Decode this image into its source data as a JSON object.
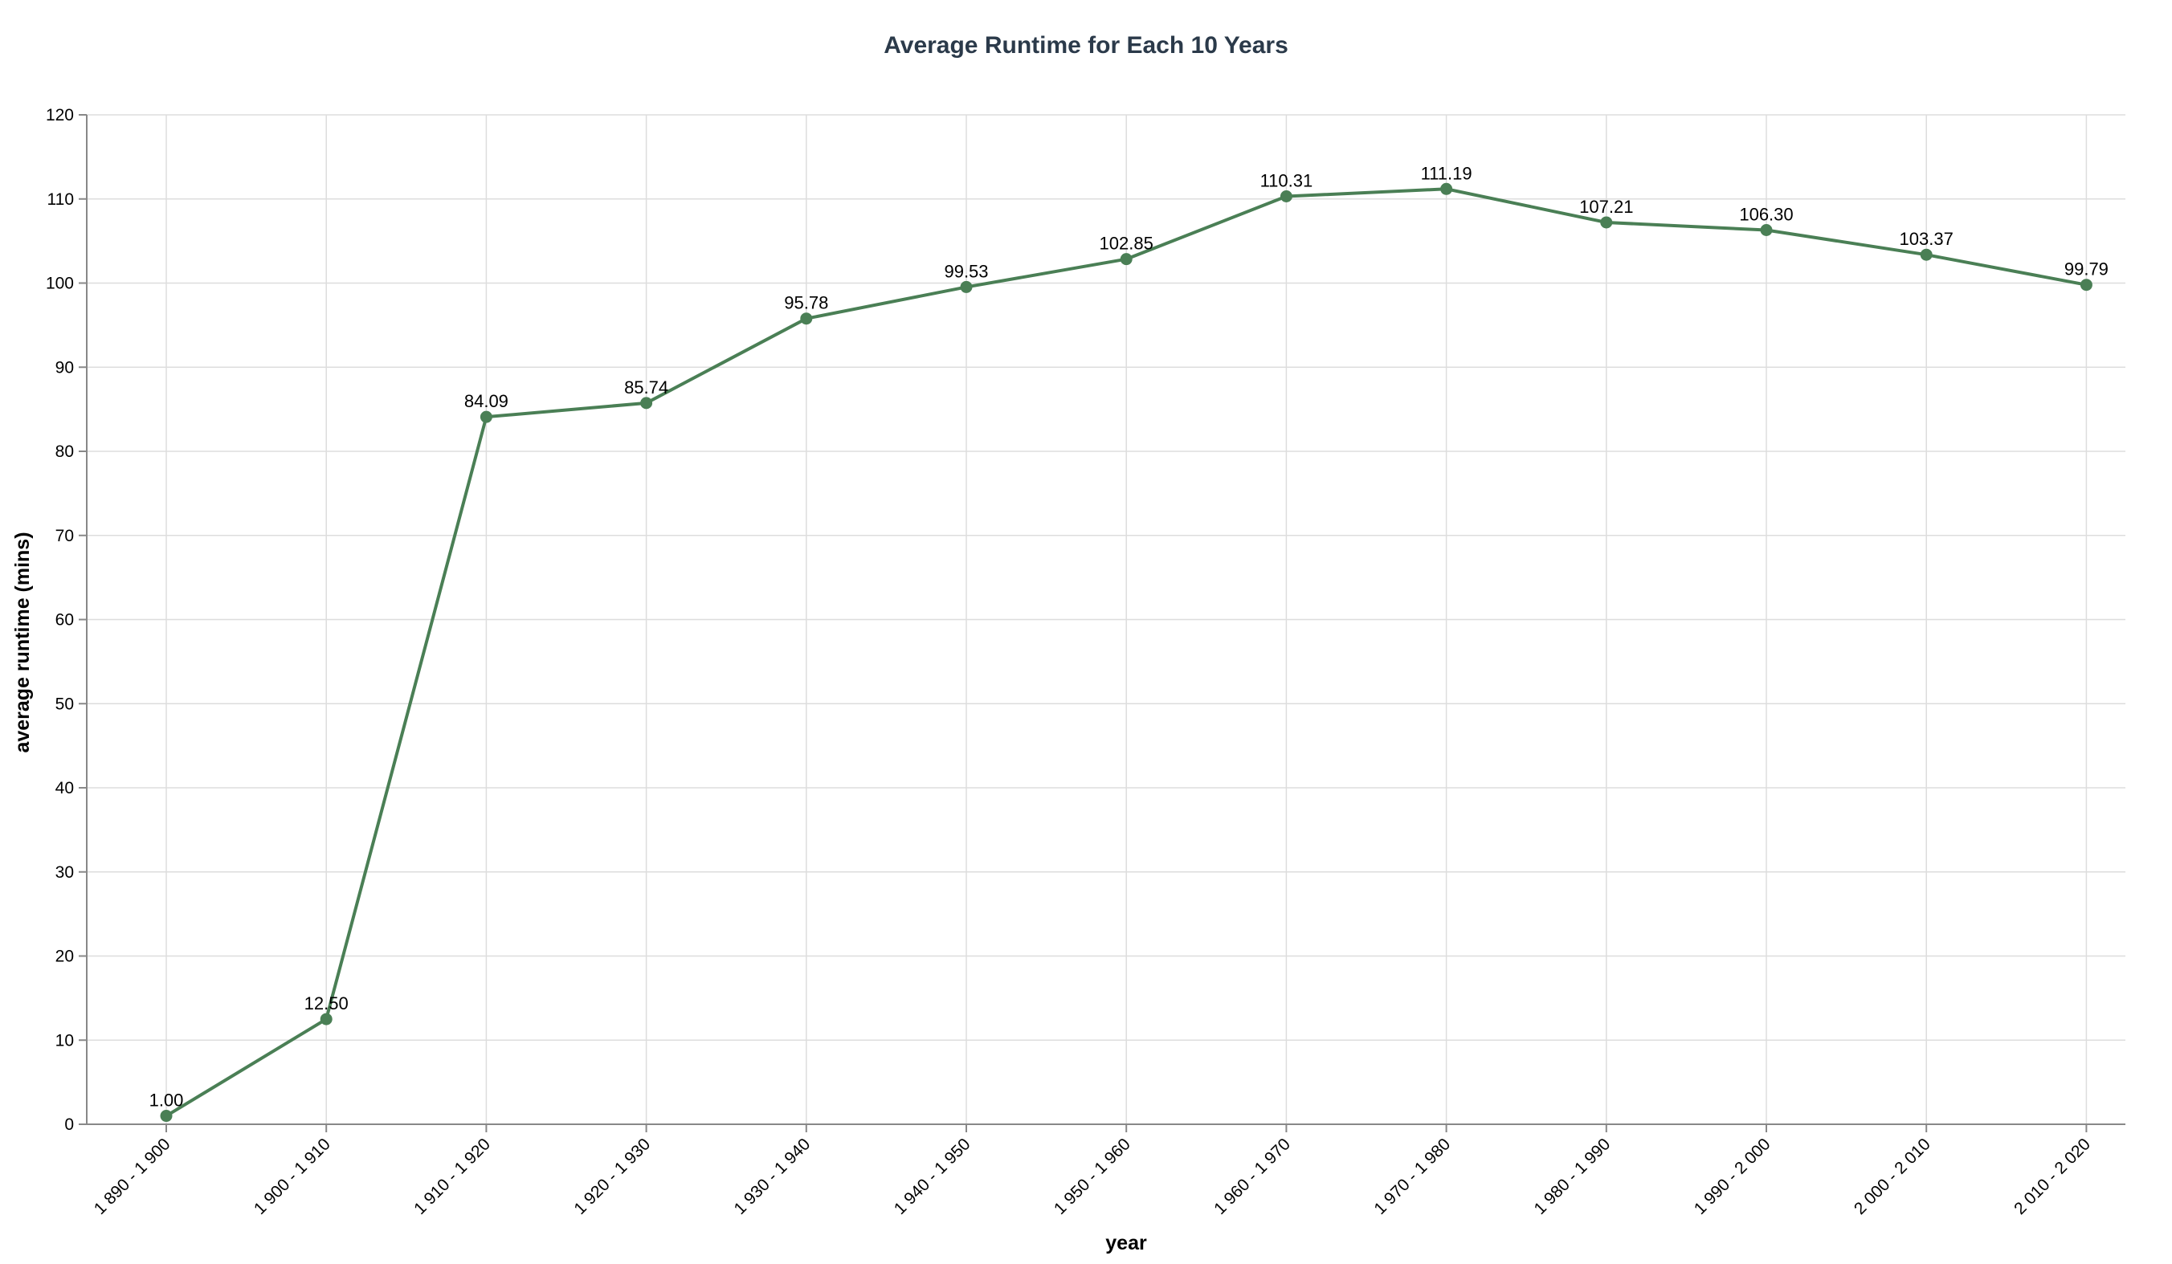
{
  "chart_data": {
    "type": "line",
    "title": "Average Runtime for Each 10 Years",
    "xlabel": "year",
    "ylabel": "average runtime (mins)",
    "ylim": [
      0,
      120
    ],
    "y_ticks": [
      0,
      10,
      20,
      30,
      40,
      50,
      60,
      70,
      80,
      90,
      100,
      110,
      120
    ],
    "grid": true,
    "color": "#4a7f55",
    "categories": [
      "1 890 - 1 900",
      "1 900 - 1 910",
      "1 910 - 1 920",
      "1 920 - 1 930",
      "1 930 - 1 940",
      "1 940 - 1 950",
      "1 950 - 1 960",
      "1 960 - 1 970",
      "1 970 - 1 980",
      "1 980 - 1 990",
      "1 990 - 2 000",
      "2 000 - 2 010",
      "2 010 - 2 020"
    ],
    "values": [
      1.0,
      12.5,
      84.09,
      85.74,
      95.78,
      99.53,
      102.85,
      110.31,
      111.19,
      107.21,
      106.3,
      103.37,
      99.79
    ],
    "value_labels": [
      "1.00",
      "12.50",
      "84.09",
      "85.74",
      "95.78",
      "99.53",
      "102.85",
      "110.31",
      "111.19",
      "107.21",
      "106.30",
      "103.37",
      "99.79"
    ]
  }
}
